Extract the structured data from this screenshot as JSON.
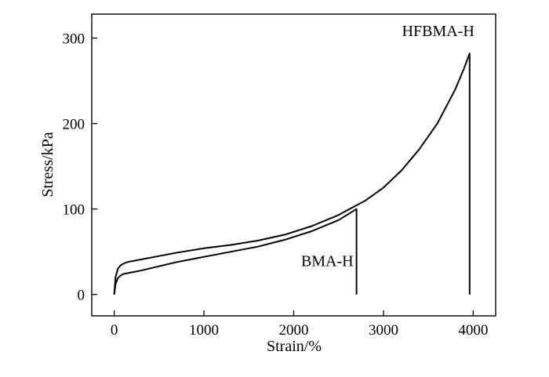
{
  "chart_data": {
    "type": "line",
    "xlabel": "Strain/%",
    "ylabel": "Stress/kPa",
    "xlim": [
      -250,
      4250
    ],
    "ylim": [
      -25,
      328
    ],
    "xticks": [
      0,
      1000,
      2000,
      3000,
      4000
    ],
    "yticks": [
      0,
      100,
      200,
      300
    ],
    "xtick_labels": [
      "0",
      "1000",
      "2000",
      "3000",
      "4000"
    ],
    "ytick_labels": [
      "0",
      "100",
      "200",
      "300"
    ],
    "grid": false,
    "series": [
      {
        "name": "HFBMA-H",
        "x": [
          0,
          15,
          40,
          70,
          100,
          150,
          200,
          300,
          500,
          700,
          1000,
          1300,
          1600,
          1900,
          2200,
          2500,
          2800,
          3000,
          3200,
          3400,
          3600,
          3800,
          3900,
          3960,
          3960
        ],
        "y": [
          0,
          20,
          30,
          34,
          36,
          38,
          39,
          41,
          45,
          49,
          54,
          58,
          63,
          70,
          80,
          93,
          110,
          125,
          145,
          170,
          200,
          240,
          265,
          282,
          0
        ]
      },
      {
        "name": "BMA-H",
        "x": [
          0,
          15,
          40,
          70,
          100,
          150,
          200,
          300,
          500,
          700,
          1000,
          1300,
          1600,
          1900,
          2200,
          2500,
          2700,
          2700
        ],
        "y": [
          0,
          12,
          19,
          22,
          24,
          25,
          26,
          28,
          33,
          38,
          44,
          50,
          56,
          64,
          74,
          87,
          100,
          0
        ]
      }
    ]
  }
}
